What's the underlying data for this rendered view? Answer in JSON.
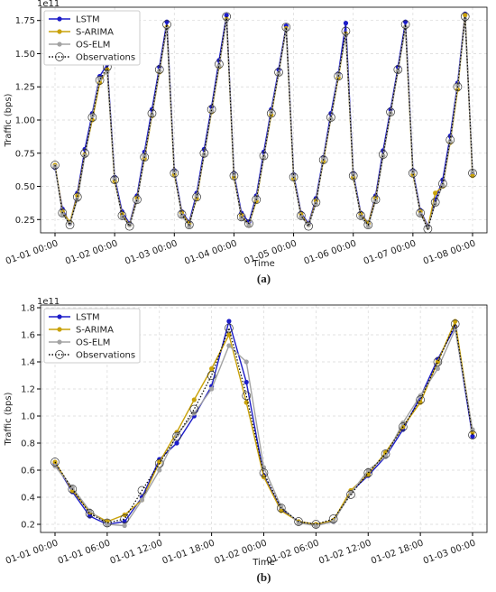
{
  "chart_data": [
    {
      "type": "line",
      "caption": "(a)",
      "xlabel": "Time",
      "ylabel": "Traffic (bps)",
      "offset_text": "1e11",
      "grid": true,
      "legend": "upper left",
      "xlim": [
        "01-01 00:00",
        "01-08 00:00"
      ],
      "xticks": [
        "01-01 00:00",
        "01-02 00:00",
        "01-03 00:00",
        "01-04 00:00",
        "01-05 00:00",
        "01-06 00:00",
        "01-07 00:00",
        "01-08 00:00"
      ],
      "ylim": [
        0.15,
        1.85
      ],
      "yticks": [
        {
          "value": 0.25,
          "label": "0.25"
        },
        {
          "value": 0.5,
          "label": "0.50"
        },
        0.75,
        {
          "value": 1,
          "label": "1.00"
        },
        1.25,
        {
          "value": 1.5,
          "label": "1.50"
        },
        1.75
      ],
      "x": [
        "01-01 00:00",
        "01-01 03:00",
        "01-01 06:00",
        "01-01 09:00",
        "01-01 12:00",
        "01-01 15:00",
        "01-01 18:00",
        "01-01 21:00",
        "01-02 00:00",
        "01-02 03:00",
        "01-02 06:00",
        "01-02 09:00",
        "01-02 12:00",
        "01-02 15:00",
        "01-02 18:00",
        "01-02 21:00",
        "01-03 00:00",
        "01-03 03:00",
        "01-03 06:00",
        "01-03 09:00",
        "01-03 12:00",
        "01-03 15:00",
        "01-03 18:00",
        "01-03 21:00",
        "01-04 00:00",
        "01-04 03:00",
        "01-04 06:00",
        "01-04 09:00",
        "01-04 12:00",
        "01-04 15:00",
        "01-04 18:00",
        "01-04 21:00",
        "01-05 00:00",
        "01-05 03:00",
        "01-05 06:00",
        "01-05 09:00",
        "01-05 12:00",
        "01-05 15:00",
        "01-05 18:00",
        "01-05 21:00",
        "01-06 00:00",
        "01-06 03:00",
        "01-06 06:00",
        "01-06 09:00",
        "01-06 12:00",
        "01-06 15:00",
        "01-06 18:00",
        "01-06 21:00",
        "01-07 00:00",
        "01-07 03:00",
        "01-07 06:00",
        "01-07 09:00",
        "01-07 12:00",
        "01-07 15:00",
        "01-07 18:00",
        "01-07 21:00",
        "01-08 00:00"
      ],
      "series": [
        {
          "name": "LSTM",
          "color": "#1c1cc8",
          "values": [
            0.64,
            0.33,
            0.22,
            0.45,
            0.78,
            1.05,
            1.33,
            1.42,
            0.57,
            0.31,
            0.22,
            0.43,
            0.76,
            1.08,
            1.4,
            1.74,
            0.62,
            0.31,
            0.23,
            0.45,
            0.78,
            1.1,
            1.45,
            1.79,
            0.6,
            0.3,
            0.23,
            0.43,
            0.76,
            1.08,
            1.38,
            1.71,
            0.59,
            0.3,
            0.22,
            0.41,
            0.72,
            1.05,
            1.35,
            1.73,
            0.6,
            0.3,
            0.22,
            0.43,
            0.77,
            1.08,
            1.4,
            1.74,
            0.62,
            0.32,
            0.2,
            0.4,
            0.55,
            0.88,
            1.28,
            1.8,
            0.59
          ]
        },
        {
          "name": "S-ARIMA",
          "color": "#c9a20a",
          "values": [
            0.66,
            0.31,
            0.23,
            0.43,
            0.74,
            1.0,
            1.28,
            1.38,
            0.54,
            0.29,
            0.21,
            0.41,
            0.71,
            1.03,
            1.36,
            1.7,
            0.59,
            0.3,
            0.22,
            0.41,
            0.74,
            1.06,
            1.4,
            1.76,
            0.57,
            0.28,
            0.21,
            0.39,
            0.72,
            1.04,
            1.35,
            1.69,
            0.56,
            0.29,
            0.21,
            0.39,
            0.69,
            1.01,
            1.32,
            1.65,
            0.57,
            0.29,
            0.22,
            0.41,
            0.73,
            1.05,
            1.37,
            1.7,
            0.59,
            0.31,
            0.19,
            0.45,
            0.5,
            0.83,
            1.23,
            1.79,
            0.58
          ]
        },
        {
          "name": "OS-ELM",
          "color": "#a3a3a3",
          "values": [
            0.65,
            0.29,
            0.22,
            0.4,
            0.73,
            1.03,
            1.31,
            1.36,
            0.56,
            0.27,
            0.21,
            0.39,
            0.73,
            1.04,
            1.37,
            1.69,
            0.61,
            0.28,
            0.2,
            0.43,
            0.74,
            1.07,
            1.41,
            1.75,
            0.59,
            0.26,
            0.21,
            0.41,
            0.72,
            1.06,
            1.35,
            1.68,
            0.58,
            0.27,
            0.21,
            0.37,
            0.71,
            1.01,
            1.34,
            1.64,
            0.59,
            0.27,
            0.2,
            0.39,
            0.73,
            1.05,
            1.37,
            1.7,
            0.61,
            0.29,
            0.19,
            0.37,
            0.51,
            0.84,
            1.26,
            1.76,
            0.61
          ]
        },
        {
          "name": "Observations",
          "color": "#000000",
          "values": [
            0.66,
            0.3,
            0.21,
            0.42,
            0.75,
            1.02,
            1.3,
            1.4,
            0.55,
            0.28,
            0.2,
            0.4,
            0.72,
            1.05,
            1.38,
            1.72,
            0.6,
            0.29,
            0.21,
            0.42,
            0.75,
            1.08,
            1.42,
            1.78,
            0.58,
            0.27,
            0.22,
            0.4,
            0.73,
            1.05,
            1.36,
            1.7,
            0.57,
            0.28,
            0.2,
            0.38,
            0.7,
            1.02,
            1.33,
            1.67,
            0.58,
            0.28,
            0.21,
            0.4,
            0.74,
            1.06,
            1.38,
            1.72,
            0.6,
            0.3,
            0.18,
            0.38,
            0.52,
            0.85,
            1.25,
            1.78,
            0.6
          ]
        }
      ]
    },
    {
      "type": "line",
      "caption": "(b)",
      "xlabel": "Time",
      "ylabel": "Traffic (bps)",
      "offset_text": "1e11",
      "grid": true,
      "legend": "upper left",
      "xlim": [
        "01-01 00:00",
        "01-03 00:00"
      ],
      "xticks": [
        "01-01 00:00",
        "01-01 06:00",
        "01-01 12:00",
        "01-01 18:00",
        "01-02 00:00",
        "01-02 06:00",
        "01-02 12:00",
        "01-02 18:00",
        "01-03 00:00"
      ],
      "ylim": [
        0.14,
        1.82
      ],
      "yticks": [
        0.2,
        0.4,
        0.6,
        0.8,
        {
          "value": 1,
          "label": "1.0"
        },
        1.2,
        1.4,
        1.6,
        1.8
      ],
      "x": [
        "01-01 00:00",
        "01-01 02:00",
        "01-01 04:00",
        "01-01 06:00",
        "01-01 08:00",
        "01-01 10:00",
        "01-01 12:00",
        "01-01 14:00",
        "01-01 16:00",
        "01-01 18:00",
        "01-01 20:00",
        "01-01 22:00",
        "01-02 00:00",
        "01-02 02:00",
        "01-02 04:00",
        "01-02 06:00",
        "01-02 08:00",
        "01-02 10:00",
        "01-02 12:00",
        "01-02 14:00",
        "01-02 16:00",
        "01-02 18:00",
        "01-02 20:00",
        "01-02 22:00",
        "01-03 00:00"
      ],
      "series": [
        {
          "name": "LSTM",
          "color": "#1c1cc8",
          "values": [
            0.65,
            0.44,
            0.26,
            0.2,
            0.22,
            0.4,
            0.68,
            0.8,
            1.0,
            1.22,
            1.7,
            1.25,
            0.56,
            0.31,
            0.22,
            0.2,
            0.22,
            0.44,
            0.56,
            0.7,
            0.9,
            1.14,
            1.42,
            1.66,
            0.85
          ]
        },
        {
          "name": "S-ARIMA",
          "color": "#c9a20a",
          "values": [
            0.66,
            0.45,
            0.29,
            0.22,
            0.27,
            0.38,
            0.66,
            0.88,
            1.12,
            1.35,
            1.6,
            1.1,
            0.55,
            0.3,
            0.22,
            0.2,
            0.23,
            0.45,
            0.57,
            0.73,
            0.92,
            1.1,
            1.4,
            1.7,
            0.88
          ]
        },
        {
          "name": "OS-ELM",
          "color": "#a3a3a3",
          "values": [
            0.63,
            0.47,
            0.3,
            0.2,
            0.19,
            0.38,
            0.6,
            0.86,
            1.02,
            1.2,
            1.52,
            1.4,
            0.62,
            0.33,
            0.21,
            0.19,
            0.22,
            0.43,
            0.6,
            0.7,
            0.95,
            1.15,
            1.35,
            1.64,
            0.9
          ]
        },
        {
          "name": "Observations",
          "color": "#000000",
          "values": [
            0.66,
            0.46,
            0.28,
            0.21,
            0.24,
            0.45,
            0.65,
            0.85,
            1.05,
            1.3,
            1.65,
            1.15,
            0.58,
            0.32,
            0.22,
            0.2,
            0.24,
            0.42,
            0.58,
            0.72,
            0.92,
            1.12,
            1.4,
            1.68,
            0.86
          ]
        }
      ]
    }
  ]
}
